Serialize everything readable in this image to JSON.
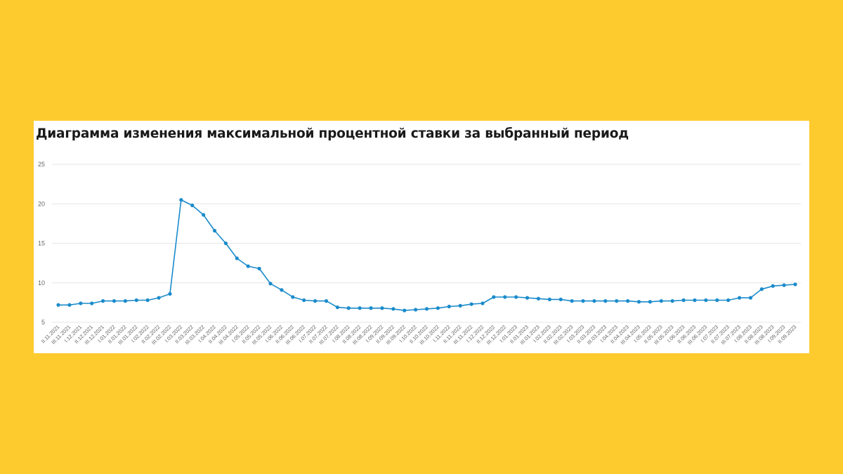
{
  "colors": {
    "background": "#FECB2F",
    "card": "#FFFFFF",
    "line": "#1B8BCB",
    "grid": "#E6E6E6",
    "text": "#666666"
  },
  "chart_data": {
    "type": "line",
    "title": "Диаграмма изменения максимальной процентной ставки за выбранный период",
    "xlabel": "",
    "ylabel": "",
    "ylim": [
      5,
      25
    ],
    "yticks": [
      5,
      10,
      15,
      20,
      25
    ],
    "grid": true,
    "categories": [
      "II.11.2021",
      "III.11.2021",
      "I.12.2021",
      "II.12.2021",
      "III.12.2021",
      "I.01.2022",
      "II.01.2022",
      "III.01.2022",
      "I.02.2022",
      "II.02.2022",
      "III.02.2022",
      "I.03.2022",
      "II.03.2022",
      "III.03.2022",
      "I.04.2022",
      "II.04.2022",
      "III.04.2022",
      "I.05.2022",
      "II.05.2022",
      "III.05.2022",
      "I.06.2022",
      "II.06.2022",
      "III.06.2022",
      "I.07.2022",
      "II.07.2022",
      "III.07.2022",
      "I.08.2022",
      "II.08.2022",
      "III.08.2022",
      "I.09.2022",
      "II.09.2022",
      "III.09.2022",
      "I.10.2022",
      "II.10.2022",
      "III.10.2022",
      "I.11.2022",
      "II.11.2022",
      "III.11.2022",
      "I.12.2022",
      "II.12.2022",
      "III.12.2022",
      "I.01.2023",
      "II.01.2023",
      "III.01.2023",
      "I.02.2023",
      "II.02.2023",
      "III.02.2023",
      "I.03.2023",
      "II.03.2023",
      "III.03.2023",
      "I.04.2023",
      "II.04.2023",
      "III.04.2023",
      "I.05.2023",
      "II.05.2023",
      "III.05.2023",
      "I.06.2023",
      "II.06.2023",
      "III.06.2023",
      "I.07.2023",
      "II.07.2023",
      "III.07.2023",
      "I.08.2023",
      "II.08.2023",
      "III.08.2023",
      "I.09.2023",
      "II.09.2023"
    ],
    "series": [
      {
        "values": [
          7.2,
          7.2,
          7.4,
          7.4,
          7.7,
          7.7,
          7.7,
          7.8,
          7.8,
          8.1,
          8.6,
          20.5,
          19.8,
          18.6,
          16.6,
          15.0,
          13.1,
          12.1,
          11.8,
          9.9,
          9.1,
          8.2,
          7.8,
          7.7,
          7.7,
          6.9,
          6.8,
          6.8,
          6.8,
          6.8,
          6.7,
          6.5,
          6.6,
          6.7,
          6.8,
          7.0,
          7.1,
          7.3,
          7.4,
          8.2,
          8.2,
          8.2,
          8.1,
          8.0,
          7.9,
          7.9,
          7.7,
          7.7,
          7.7,
          7.7,
          7.7,
          7.7,
          7.6,
          7.6,
          7.7,
          7.7,
          7.8,
          7.8,
          7.8,
          7.8,
          7.8,
          8.1,
          8.1,
          9.2,
          9.6,
          9.7,
          9.8
        ]
      }
    ]
  }
}
